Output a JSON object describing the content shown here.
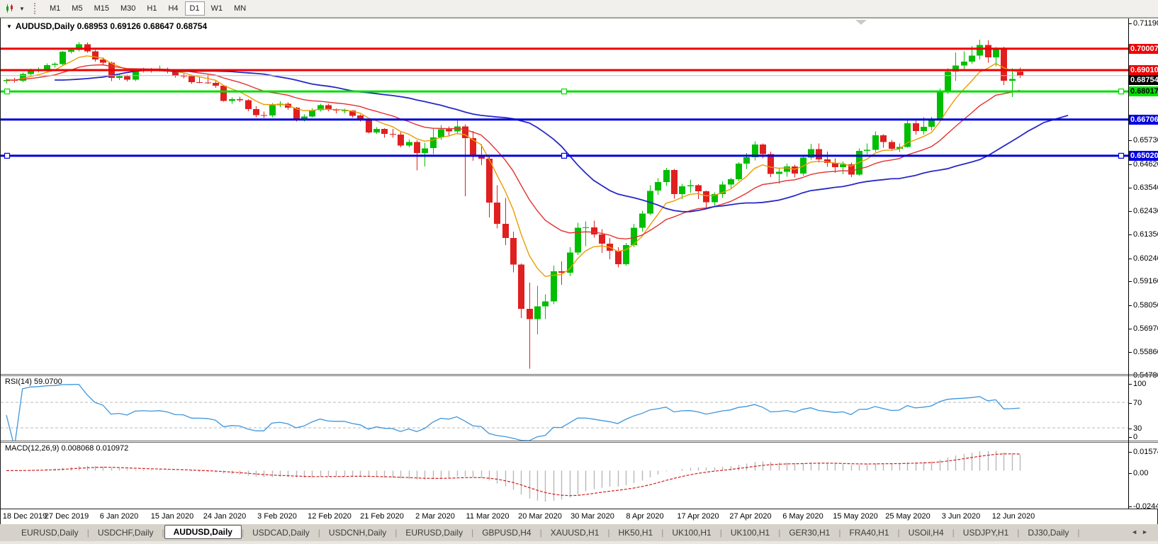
{
  "toolbar": {
    "timeframes": [
      "M1",
      "M5",
      "M15",
      "M30",
      "H1",
      "H4",
      "D1",
      "W1",
      "MN"
    ],
    "active": "D1"
  },
  "icons": {
    "symbol_marker": "▼",
    "dropdown_caret": "▼",
    "tab_scroll_left": "◄",
    "tab_scroll_right": "►"
  },
  "chart_header": {
    "title": "AUDUSD,Daily 0.68953 0.69126 0.68647 0.68754"
  },
  "indicators": {
    "rsi_label": "RSI(14) 59.0700",
    "macd_label": "MACD(12,26,9) 0.008068 0.010972"
  },
  "price_axis": {
    "ticks": [
      "0.71190",
      "0.65730",
      "0.64620",
      "0.63540",
      "0.62430",
      "0.61350",
      "0.60240",
      "0.59160",
      "0.58050",
      "0.56970",
      "0.55860",
      "0.54780"
    ],
    "badges": [
      {
        "value": "0.70007",
        "bg": "#F00000",
        "fg": "#FFFFFF"
      },
      {
        "value": "0.69010",
        "bg": "#F00000",
        "fg": "#FFFFFF"
      },
      {
        "value": "0.68754",
        "bg": "#000000",
        "fg": "#FFFFFF"
      },
      {
        "value": "0.68017",
        "bg": "#00E000",
        "fg": "#000000"
      },
      {
        "value": "0.66706",
        "bg": "#0000E0",
        "fg": "#FFFFFF"
      },
      {
        "value": "0.65020",
        "bg": "#0000E0",
        "fg": "#FFFFFF"
      }
    ]
  },
  "tab_bar": {
    "tabs": [
      "EURUSD,Daily",
      "USDCHF,Daily",
      "AUDUSD,Daily",
      "USDCAD,Daily",
      "USDCNH,Daily",
      "EURUSD,Daily",
      "GBPUSD,H4",
      "XAUUSD,H1",
      "HK50,H1",
      "UK100,H1",
      "UK100,H1",
      "GER30,H1",
      "FRA40,H1",
      "USOil,H4",
      "USDJPY,H1",
      "DJ30,Daily"
    ],
    "active_index": 2
  },
  "chart_data": {
    "type": "candlestick",
    "symbol": "AUDUSD",
    "timeframe": "Daily",
    "last_ohlc": {
      "open": "0.68953",
      "high": "0.69126",
      "low": "0.68647",
      "close": "0.68754"
    },
    "price_range": {
      "top": 0.7119,
      "bottom": 0.5478
    },
    "bull_color": "#00BE00",
    "bear_color": "#E01F1F",
    "x_axis_labels": [
      "18 Dec 2019",
      "27 Dec 2019",
      "6 Jan 2020",
      "15 Jan 2020",
      "24 Jan 2020",
      "3 Feb 2020",
      "12 Feb 2020",
      "21 Feb 2020",
      "2 Mar 2020",
      "11 Mar 2020",
      "20 Mar 2020",
      "30 Mar 2020",
      "8 Apr 2020",
      "17 Apr 2020",
      "27 Apr 2020",
      "6 May 2020",
      "15 May 2020",
      "25 May 2020",
      "3 Jun 2020",
      "12 Jun 2020"
    ],
    "y_axis_ticks": [
      "0.71190",
      "0.65730",
      "0.64620",
      "0.63540",
      "0.62430",
      "0.61350",
      "0.60240",
      "0.59160",
      "0.58050",
      "0.56970",
      "0.55860",
      "0.54780"
    ],
    "horizontal_lines": [
      {
        "price": 0.70007,
        "color": "#EE0000",
        "width": 3,
        "selected": false
      },
      {
        "price": 0.6901,
        "color": "#EE0000",
        "width": 3,
        "selected": false
      },
      {
        "price": 0.68754,
        "color": "#BDBDBD",
        "width": 1,
        "selected": false,
        "role": "current-price"
      },
      {
        "price": 0.68017,
        "color": "#00DC00",
        "width": 3,
        "selected": true
      },
      {
        "price": 0.66706,
        "color": "#0000DC",
        "width": 3,
        "selected": false
      },
      {
        "price": 0.6502,
        "color": "#0000DC",
        "width": 3,
        "selected": true
      }
    ],
    "moving_averages": [
      {
        "name": "fast",
        "period": 7,
        "color": "#EB9B00",
        "width": 1.4,
        "shift": 0
      },
      {
        "name": "mid",
        "period": 18,
        "color": "#E43030",
        "width": 1.4,
        "shift": 0
      },
      {
        "name": "slow",
        "period": 34,
        "color": "#2828C8",
        "width": 1.8,
        "shift": 6
      }
    ],
    "rsi": {
      "period": 14,
      "current": "59.0700",
      "levels": [
        70,
        30
      ],
      "axis_labels": [
        "100",
        "70",
        "30",
        "0"
      ],
      "color": "#3E96DC"
    },
    "macd": {
      "fast": 12,
      "slow": 26,
      "signal": 9,
      "current_macd": "0.008068",
      "current_signal": "0.010972",
      "axis_labels": [
        "0.015741",
        "0.00",
        "-0.02441"
      ],
      "axis_values": [
        0.015741,
        0,
        -0.02441
      ],
      "histogram_color": "#B8B8B8",
      "signal_color": "#D02020"
    },
    "candles": [
      [
        0.685,
        0.6862,
        0.6838,
        0.6855
      ],
      [
        0.6855,
        0.6865,
        0.6843,
        0.6852
      ],
      [
        0.6852,
        0.6889,
        0.6845,
        0.6883
      ],
      [
        0.6883,
        0.6908,
        0.6877,
        0.69
      ],
      [
        0.69,
        0.6915,
        0.689,
        0.6905
      ],
      [
        0.6905,
        0.6932,
        0.6895,
        0.6925
      ],
      [
        0.6925,
        0.6938,
        0.6912,
        0.693
      ],
      [
        0.693,
        0.699,
        0.6925,
        0.6987
      ],
      [
        0.6987,
        0.7002,
        0.6978,
        0.6995
      ],
      [
        0.6995,
        0.7032,
        0.6988,
        0.7021
      ],
      [
        0.7021,
        0.703,
        0.6982,
        0.6988
      ],
      [
        0.6988,
        0.6995,
        0.6941,
        0.6951
      ],
      [
        0.6951,
        0.696,
        0.6925,
        0.6935
      ],
      [
        0.6935,
        0.6941,
        0.685,
        0.6865
      ],
      [
        0.6865,
        0.6884,
        0.6855,
        0.6873
      ],
      [
        0.6873,
        0.688,
        0.6849,
        0.6856
      ],
      [
        0.6856,
        0.691,
        0.685,
        0.69
      ],
      [
        0.69,
        0.6912,
        0.689,
        0.6904
      ],
      [
        0.6904,
        0.6911,
        0.6889,
        0.6901
      ],
      [
        0.6901,
        0.6922,
        0.6895,
        0.6905
      ],
      [
        0.6905,
        0.6913,
        0.6886,
        0.6896
      ],
      [
        0.6896,
        0.6902,
        0.6867,
        0.6874
      ],
      [
        0.6874,
        0.6884,
        0.6863,
        0.6873
      ],
      [
        0.6873,
        0.6878,
        0.6837,
        0.6845
      ],
      [
        0.6845,
        0.687,
        0.684,
        0.6844
      ],
      [
        0.6844,
        0.6879,
        0.6836,
        0.6842
      ],
      [
        0.6842,
        0.685,
        0.6818,
        0.6828
      ],
      [
        0.6828,
        0.683,
        0.6754,
        0.6758
      ],
      [
        0.6758,
        0.6774,
        0.6744,
        0.6765
      ],
      [
        0.6765,
        0.6778,
        0.6752,
        0.676
      ],
      [
        0.676,
        0.6765,
        0.671,
        0.672
      ],
      [
        0.672,
        0.6733,
        0.6682,
        0.6691
      ],
      [
        0.6691,
        0.6708,
        0.6678,
        0.669
      ],
      [
        0.669,
        0.6748,
        0.6682,
        0.6738
      ],
      [
        0.6738,
        0.6756,
        0.673,
        0.6745
      ],
      [
        0.6745,
        0.6751,
        0.6716,
        0.6726
      ],
      [
        0.6726,
        0.673,
        0.6662,
        0.6673
      ],
      [
        0.6673,
        0.6694,
        0.6662,
        0.6685
      ],
      [
        0.6685,
        0.6723,
        0.668,
        0.6715
      ],
      [
        0.6715,
        0.6745,
        0.6708,
        0.6738
      ],
      [
        0.6738,
        0.6744,
        0.671,
        0.6716
      ],
      [
        0.6716,
        0.6723,
        0.67,
        0.6713
      ],
      [
        0.6713,
        0.6722,
        0.67,
        0.6713
      ],
      [
        0.6713,
        0.6715,
        0.668,
        0.6689
      ],
      [
        0.6689,
        0.6695,
        0.6661,
        0.6673
      ],
      [
        0.6673,
        0.6678,
        0.6605,
        0.6611
      ],
      [
        0.6611,
        0.6636,
        0.6604,
        0.6627
      ],
      [
        0.6627,
        0.663,
        0.6585,
        0.6604
      ],
      [
        0.6604,
        0.6627,
        0.6585,
        0.6601
      ],
      [
        0.6601,
        0.6612,
        0.6542,
        0.6549
      ],
      [
        0.6549,
        0.6578,
        0.6541,
        0.6566
      ],
      [
        0.6566,
        0.6574,
        0.6434,
        0.6515
      ],
      [
        0.6515,
        0.6562,
        0.6452,
        0.6537
      ],
      [
        0.6537,
        0.663,
        0.651,
        0.6588
      ],
      [
        0.6588,
        0.6646,
        0.6576,
        0.6626
      ],
      [
        0.6626,
        0.6638,
        0.6594,
        0.6616
      ],
      [
        0.6616,
        0.667,
        0.6603,
        0.6639
      ],
      [
        0.6639,
        0.6648,
        0.6313,
        0.6584
      ],
      [
        0.6584,
        0.6618,
        0.6478,
        0.6504
      ],
      [
        0.6504,
        0.6556,
        0.6458,
        0.6489
      ],
      [
        0.6489,
        0.6502,
        0.6215,
        0.6284
      ],
      [
        0.6284,
        0.6365,
        0.6163,
        0.6184
      ],
      [
        0.6184,
        0.6305,
        0.6086,
        0.6119
      ],
      [
        0.6119,
        0.6148,
        0.5958,
        0.5995
      ],
      [
        0.5995,
        0.6,
        0.5745,
        0.5788
      ],
      [
        0.5788,
        0.591,
        0.551,
        0.5741
      ],
      [
        0.5741,
        0.5895,
        0.567,
        0.58
      ],
      [
        0.58,
        0.5856,
        0.574,
        0.5823
      ],
      [
        0.5823,
        0.599,
        0.581,
        0.5964
      ],
      [
        0.5964,
        0.601,
        0.59,
        0.5957
      ],
      [
        0.5957,
        0.6075,
        0.594,
        0.6051
      ],
      [
        0.6051,
        0.619,
        0.604,
        0.6167
      ],
      [
        0.6167,
        0.6196,
        0.608,
        0.6168
      ],
      [
        0.6168,
        0.62,
        0.612,
        0.6135
      ],
      [
        0.6135,
        0.616,
        0.605,
        0.6093
      ],
      [
        0.6093,
        0.6118,
        0.602,
        0.6059
      ],
      [
        0.6059,
        0.6075,
        0.5982,
        0.5996
      ],
      [
        0.5996,
        0.6095,
        0.599,
        0.6086
      ],
      [
        0.6086,
        0.6185,
        0.6075,
        0.6166
      ],
      [
        0.6166,
        0.6245,
        0.6148,
        0.6233
      ],
      [
        0.6233,
        0.6364,
        0.6226,
        0.6339
      ],
      [
        0.6339,
        0.6398,
        0.632,
        0.638
      ],
      [
        0.638,
        0.6445,
        0.6361,
        0.6436
      ],
      [
        0.6436,
        0.644,
        0.6302,
        0.6323
      ],
      [
        0.6323,
        0.6371,
        0.63,
        0.636
      ],
      [
        0.636,
        0.6391,
        0.633,
        0.6364
      ],
      [
        0.6364,
        0.637,
        0.6301,
        0.6336
      ],
      [
        0.6336,
        0.634,
        0.6253,
        0.6285
      ],
      [
        0.6285,
        0.6331,
        0.6265,
        0.6323
      ],
      [
        0.6323,
        0.6382,
        0.6305,
        0.6368
      ],
      [
        0.6368,
        0.64,
        0.6352,
        0.6392
      ],
      [
        0.6392,
        0.6472,
        0.6385,
        0.6465
      ],
      [
        0.6465,
        0.6515,
        0.644,
        0.6495
      ],
      [
        0.6495,
        0.657,
        0.648,
        0.6555
      ],
      [
        0.6555,
        0.656,
        0.649,
        0.651
      ],
      [
        0.651,
        0.6522,
        0.6402,
        0.6418
      ],
      [
        0.6418,
        0.6446,
        0.6372,
        0.6428
      ],
      [
        0.6428,
        0.6465,
        0.6405,
        0.6452
      ],
      [
        0.6452,
        0.6461,
        0.6401,
        0.6419
      ],
      [
        0.6419,
        0.6505,
        0.641,
        0.6493
      ],
      [
        0.6493,
        0.6558,
        0.6483,
        0.6533
      ],
      [
        0.6533,
        0.656,
        0.647,
        0.6485
      ],
      [
        0.6485,
        0.6522,
        0.645,
        0.6468
      ],
      [
        0.6468,
        0.649,
        0.6423,
        0.6449
      ],
      [
        0.6449,
        0.6475,
        0.6416,
        0.6462
      ],
      [
        0.6462,
        0.647,
        0.6403,
        0.6414
      ],
      [
        0.6414,
        0.6536,
        0.641,
        0.6525
      ],
      [
        0.6525,
        0.656,
        0.6508,
        0.653
      ],
      [
        0.653,
        0.6616,
        0.652,
        0.6598
      ],
      [
        0.6598,
        0.6603,
        0.654,
        0.6566
      ],
      [
        0.6566,
        0.6576,
        0.6525,
        0.6534
      ],
      [
        0.6534,
        0.656,
        0.652,
        0.6543
      ],
      [
        0.6543,
        0.6675,
        0.654,
        0.6654
      ],
      [
        0.6654,
        0.6665,
        0.66,
        0.6617
      ],
      [
        0.6617,
        0.6681,
        0.6601,
        0.6637
      ],
      [
        0.6637,
        0.6684,
        0.662,
        0.6667
      ],
      [
        0.6667,
        0.6815,
        0.666,
        0.6797
      ],
      [
        0.6797,
        0.691,
        0.679,
        0.6894
      ],
      [
        0.6894,
        0.6983,
        0.6852,
        0.6923
      ],
      [
        0.6923,
        0.6988,
        0.6905,
        0.694
      ],
      [
        0.694,
        0.7013,
        0.693,
        0.6968
      ],
      [
        0.6968,
        0.7043,
        0.695,
        0.7019
      ],
      [
        0.7019,
        0.704,
        0.6935,
        0.6961
      ],
      [
        0.6961,
        0.7008,
        0.692,
        0.7
      ],
      [
        0.7,
        0.701,
        0.6832,
        0.6851
      ],
      [
        0.6851,
        0.691,
        0.6776,
        0.686
      ],
      [
        0.68953,
        0.69126,
        0.68647,
        0.68754
      ]
    ]
  }
}
